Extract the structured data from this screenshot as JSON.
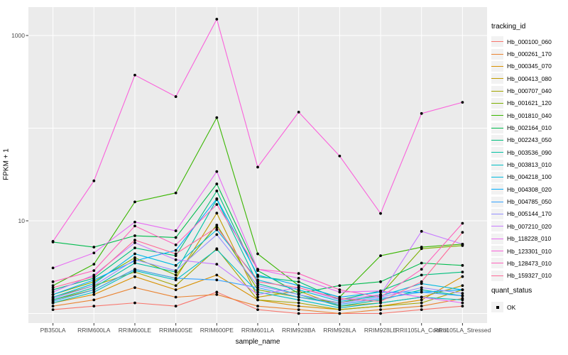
{
  "chart_data": {
    "type": "line",
    "title": "",
    "xlabel": "sample_name",
    "ylabel": "FPKM + 1",
    "x_categories": [
      "PB350LA",
      "RRIM600LA",
      "RRIM600LE",
      "RRIM600SE",
      "RRIM600PE",
      "RRIM601LA",
      "RRIM928BA",
      "RRIM928LA",
      "RRIM928LE",
      "RRII105LA_Control",
      "RRII105LA_Stressed"
    ],
    "y_scale": "log10",
    "y_tick_values": [
      10,
      1000
    ],
    "y_gridline_values": [
      1,
      10,
      100,
      1000
    ],
    "ylim": [
      0.79,
      2000
    ],
    "legend_position": "right",
    "panel_bg": "#EBEBEB",
    "grid_color": "#FFFFFF",
    "point_color": "#000000",
    "tick_label_color": "#4D4D4D",
    "series": [
      {
        "name": "Hb_000100_060",
        "color": "#F8766D",
        "values": [
          1.1,
          1.2,
          1.3,
          1.2,
          1.7,
          1.1,
          1.0,
          1.0,
          1.0,
          1.1,
          1.2
        ]
      },
      {
        "name": "Hb_000261_170",
        "color": "#EA8331",
        "values": [
          1.2,
          1.4,
          1.9,
          1.5,
          1.6,
          1.2,
          1.1,
          1.0,
          1.1,
          1.2,
          1.45
        ]
      },
      {
        "name": "Hb_000345_070",
        "color": "#D89000",
        "values": [
          1.3,
          1.6,
          2.5,
          1.8,
          2.6,
          1.4,
          1.2,
          1.1,
          1.2,
          1.4,
          2.5
        ]
      },
      {
        "name": "Hb_000413_080",
        "color": "#C09B00",
        "values": [
          1.4,
          1.8,
          3.0,
          2.4,
          12.1,
          1.5,
          1.75,
          1.2,
          1.3,
          1.5,
          2.0
        ]
      },
      {
        "name": "Hb_000707_040",
        "color": "#A3A500",
        "values": [
          1.5,
          2.0,
          2.8,
          2.0,
          5.0,
          1.4,
          1.3,
          1.1,
          1.2,
          1.3,
          1.8
        ]
      },
      {
        "name": "Hb_001621_120",
        "color": "#7CAE00",
        "values": [
          1.6,
          2.2,
          4.0,
          2.6,
          9.0,
          1.8,
          1.5,
          1.3,
          1.6,
          5.0,
          5.4
        ]
      },
      {
        "name": "Hb_001810_040",
        "color": "#39B600",
        "values": [
          2.0,
          3.4,
          16,
          20,
          130,
          4.4,
          2.0,
          1.5,
          4.2,
          5.2,
          5.6
        ]
      },
      {
        "name": "Hb_002164_010",
        "color": "#00BB4E",
        "values": [
          5.9,
          5.2,
          6.9,
          6.6,
          25,
          2.9,
          1.65,
          2.0,
          2.2,
          3.5,
          3.3
        ]
      },
      {
        "name": "Hb_002243_050",
        "color": "#00BF7D",
        "values": [
          1.8,
          2.4,
          5.1,
          4.2,
          21,
          2.5,
          2.2,
          1.4,
          1.75,
          2.6,
          2.8
        ]
      },
      {
        "name": "Hb_003536_090",
        "color": "#00C1A3",
        "values": [
          1.4,
          1.9,
          3.5,
          2.8,
          17,
          2.1,
          1.6,
          1.2,
          1.4,
          1.8,
          1.55
        ]
      },
      {
        "name": "Hb_003813_010",
        "color": "#00BFC4",
        "values": [
          1.3,
          1.7,
          2.9,
          2.3,
          4.9,
          1.7,
          1.4,
          1.15,
          1.3,
          1.5,
          1.4
        ]
      },
      {
        "name": "Hb_004218_100",
        "color": "#00BAE0",
        "values": [
          1.5,
          2.1,
          4.4,
          3.3,
          8.0,
          2.3,
          1.8,
          1.35,
          1.55,
          2.1,
          1.8
        ]
      },
      {
        "name": "Hb_004308_020",
        "color": "#00ACFC",
        "values": [
          1.6,
          2.3,
          3.7,
          4.8,
          17.3,
          2.6,
          2.0,
          1.5,
          1.7,
          1.7,
          1.8
        ]
      },
      {
        "name": "Hb_004785_050",
        "color": "#35A2FF",
        "values": [
          1.35,
          1.8,
          3.0,
          2.4,
          2.3,
          1.9,
          1.5,
          1.25,
          1.45,
          1.7,
          1.55
        ]
      },
      {
        "name": "Hb_005144_170",
        "color": "#9590FF",
        "values": [
          1.45,
          2.0,
          3.8,
          2.9,
          7.1,
          2.0,
          1.6,
          1.3,
          1.5,
          1.9,
          1.65
        ]
      },
      {
        "name": "Hb_007210_020",
        "color": "#C77CFF",
        "values": [
          1.7,
          2.6,
          5.8,
          3.8,
          3.4,
          1.6,
          1.9,
          1.4,
          1.6,
          7.7,
          5.6
        ]
      },
      {
        "name": "Hb_118228_010",
        "color": "#E76BF3",
        "values": [
          3.1,
          4.5,
          9.7,
          7.8,
          34,
          3.0,
          2.4,
          1.7,
          1.75,
          1.5,
          1.3
        ]
      },
      {
        "name": "Hb_123301_010",
        "color": "#FA62DB",
        "values": [
          6.0,
          27,
          374,
          219,
          1500,
          38,
          149,
          50,
          12,
          144,
          190
        ]
      },
      {
        "name": "Hb_128473_010",
        "color": "#FF62BC",
        "values": [
          2.2,
          2.9,
          8.8,
          5.5,
          15,
          3.0,
          2.7,
          1.8,
          1.5,
          3.0,
          9.4
        ]
      },
      {
        "name": "Hb_159327_010",
        "color": "#FF6A98",
        "values": [
          1.9,
          2.5,
          6.2,
          4.4,
          8.5,
          2.2,
          1.9,
          1.45,
          1.35,
          2.2,
          7.5
        ]
      }
    ]
  },
  "legend": {
    "tracking_title": "tracking_id",
    "quant_title": "quant_status",
    "quant_items": [
      {
        "label": "OK"
      }
    ]
  }
}
